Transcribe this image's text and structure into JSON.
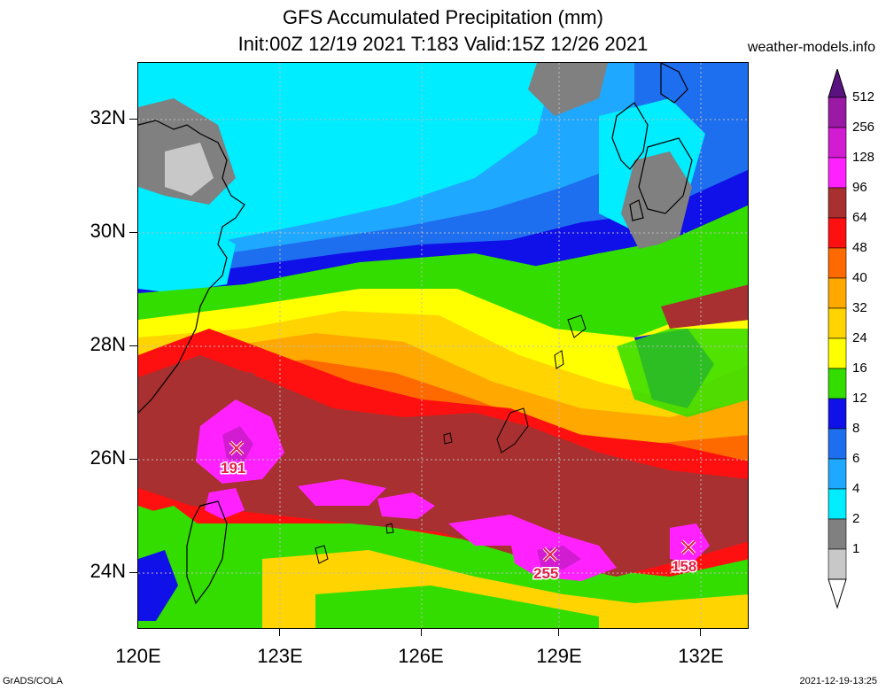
{
  "title": {
    "line1": "GFS Accumulated Precipitation (mm)",
    "line2": "Init:00Z 12/19 2021 T:183 Valid:15Z 12/26 2021"
  },
  "source": "weather-models.info",
  "footer": {
    "left": "GrADS/COLA",
    "right": "2021-12-19-13:25"
  },
  "axes": {
    "lat_labels": [
      "32N",
      "30N",
      "28N",
      "26N",
      "24N"
    ],
    "lon_labels": [
      "120E",
      "123E",
      "126E",
      "129E",
      "132E"
    ]
  },
  "colorbar": {
    "levels": [
      "512",
      "256",
      "128",
      "96",
      "64",
      "48",
      "40",
      "32",
      "24",
      "16",
      "12",
      "8",
      "6",
      "4",
      "2",
      "1"
    ],
    "colors": [
      "#5a1280",
      "#9a1aa6",
      "#d21cd2",
      "#ff22ff",
      "#a83030",
      "#ff1010",
      "#ff6a00",
      "#ffa800",
      "#ffd400",
      "#ffff00",
      "#33dd00",
      "#1010e8",
      "#1e6ef0",
      "#1ea8ff",
      "#00ecff",
      "#808080",
      "#c8c8c8",
      "#ffffff"
    ]
  },
  "markers": [
    {
      "name": "max-marker-191",
      "label": "191"
    },
    {
      "name": "max-marker-255",
      "label": "255"
    },
    {
      "name": "max-marker-158",
      "label": "158"
    }
  ]
}
